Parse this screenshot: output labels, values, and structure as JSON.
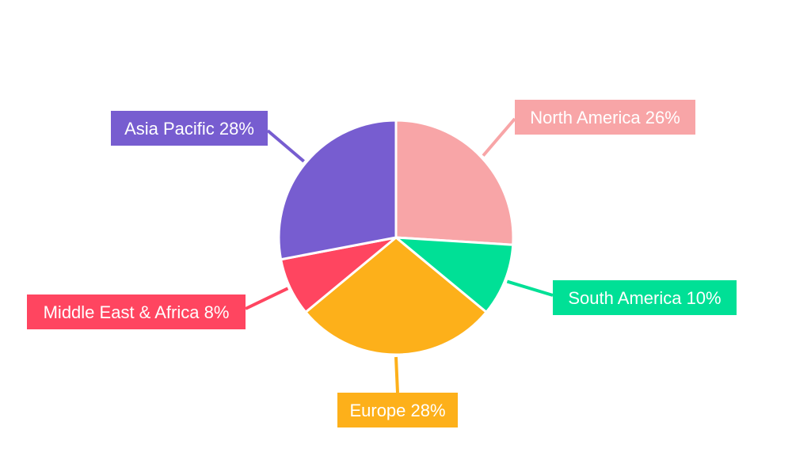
{
  "chart_data": {
    "type": "pie",
    "start_angle": "top, clockwise",
    "slices": [
      {
        "label": "North America",
        "value": 26,
        "display": "North America 26%",
        "color": "#F8A5A7"
      },
      {
        "label": "South America",
        "value": 10,
        "display": "South America 10%",
        "color": "#00E096"
      },
      {
        "label": "Europe",
        "value": 28,
        "display": "Europe 28%",
        "color": "#FDB01A"
      },
      {
        "label": "Middle East & Africa",
        "value": 8,
        "display": "Middle East & Africa 8%",
        "color": "#FF4560"
      },
      {
        "label": "Asia Pacific",
        "value": 28,
        "display": "Asia Pacific 28%",
        "color": "#775DD0"
      }
    ]
  }
}
